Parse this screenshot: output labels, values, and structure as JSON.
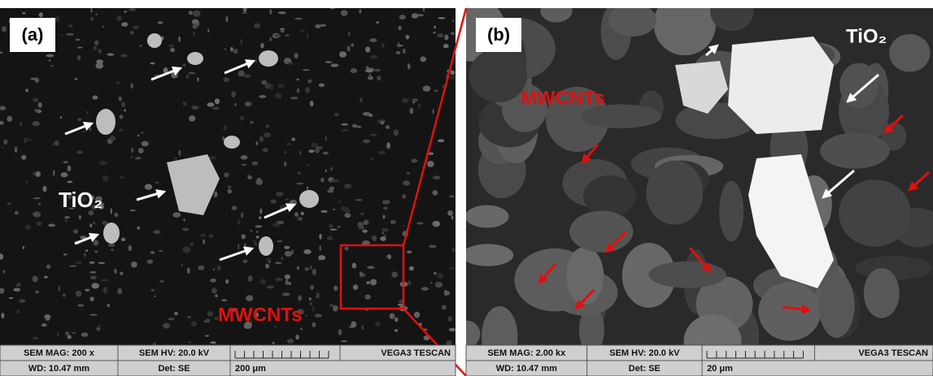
{
  "panels": [
    {
      "label": "(a)",
      "material_label": "TiO₂",
      "cnt_label": "MWCNTs",
      "info": {
        "mag": "SEM MAG: 200 x",
        "hv": "SEM HV: 20.0 kV",
        "brand": "VEGA3 TESCAN",
        "wd": "WD: 10.47 mm",
        "det": "Det: SE",
        "scale": "200 μm"
      }
    },
    {
      "label": "(b)",
      "material_label": "TiO₂",
      "cnt_label": "MWCNTs",
      "info": {
        "mag": "SEM MAG: 2.00 kx",
        "hv": "SEM HV: 20.0 kV",
        "brand": "VEGA3 TESCAN",
        "wd": "WD: 10.47 mm",
        "det": "Det: SE",
        "scale": "20 μm"
      }
    }
  ]
}
